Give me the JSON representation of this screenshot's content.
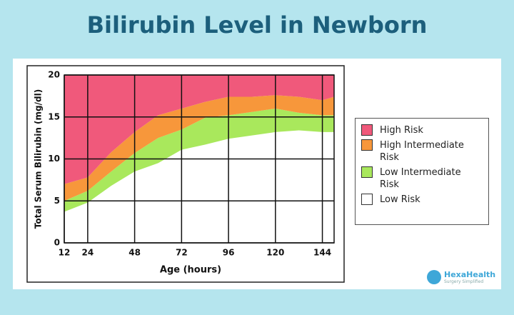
{
  "chart_data": {
    "type": "stacked-area",
    "title": "Bilirubin Level in Newborn",
    "x_label": "Age (hours)",
    "y_label": "Total Serum Bilirubin (mg/dl)",
    "x": [
      12,
      24,
      36,
      48,
      60,
      72,
      84,
      96,
      108,
      120,
      132,
      144,
      150
    ],
    "series": [
      {
        "name": "Low Risk",
        "color": "#ffffff",
        "values": [
          3.7,
          4.8,
          6.8,
          8.5,
          9.5,
          11.1,
          11.7,
          12.4,
          12.8,
          13.2,
          13.4,
          13.2,
          13.2
        ]
      },
      {
        "name": "Low Intermediate Risk",
        "color": "#a9e85c",
        "values": [
          1.3,
          1.4,
          1.7,
          2.2,
          3.0,
          2.4,
          3.2,
          2.8,
          2.8,
          2.8,
          2.1,
          2.0,
          2.0
        ]
      },
      {
        "name": "High Intermediate Risk",
        "color": "#f7973b",
        "values": [
          2.0,
          1.6,
          2.3,
          2.5,
          2.7,
          2.5,
          1.9,
          2.2,
          1.8,
          1.6,
          1.9,
          1.8,
          2.2
        ]
      },
      {
        "name": "High Risk",
        "color": "#f0597b",
        "values": [
          13.0,
          12.2,
          9.2,
          6.8,
          4.8,
          4.0,
          3.2,
          2.6,
          2.6,
          2.4,
          2.6,
          3.0,
          2.6
        ]
      }
    ],
    "xlim": [
      12,
      150
    ],
    "ylim": [
      0,
      20
    ],
    "xticks": [
      12,
      24,
      48,
      72,
      96,
      120,
      144
    ],
    "yticks": [
      0,
      5,
      10,
      15,
      20
    ],
    "grid": true
  },
  "brand": {
    "name": "HexaHealth",
    "tagline": "Surgery Simplified"
  }
}
